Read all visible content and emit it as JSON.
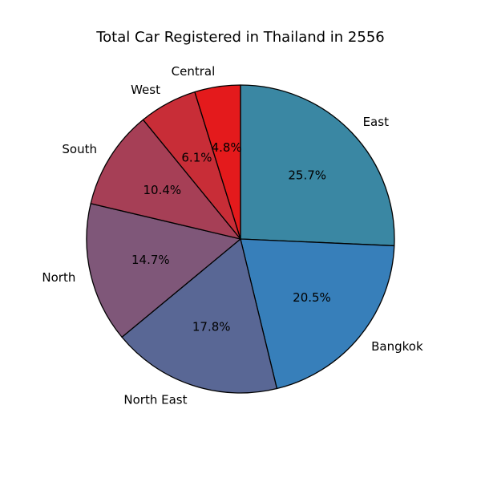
{
  "chart_data": {
    "type": "pie",
    "title": "Total Car Registered in Thailand in 2556",
    "start_angle_deg": 90,
    "direction": "clockwise",
    "slices": [
      {
        "label": "East",
        "value": 25.7,
        "pct_label": "25.7%",
        "color": "#3A87A3"
      },
      {
        "label": "Bangkok",
        "value": 20.5,
        "pct_label": "20.5%",
        "color": "#377FBA"
      },
      {
        "label": "North East",
        "value": 17.8,
        "pct_label": "17.8%",
        "color": "#596795"
      },
      {
        "label": "North",
        "value": 14.7,
        "pct_label": "14.7%",
        "color": "#7F5779"
      },
      {
        "label": "South",
        "value": 10.4,
        "pct_label": "10.4%",
        "color": "#A63F56"
      },
      {
        "label": "West",
        "value": 6.1,
        "pct_label": "6.1%",
        "color": "#C82D37"
      },
      {
        "label": "Central",
        "value": 4.8,
        "pct_label": "4.8%",
        "color": "#E41A1C"
      }
    ],
    "edge_color": "#000000",
    "legend": "none"
  }
}
